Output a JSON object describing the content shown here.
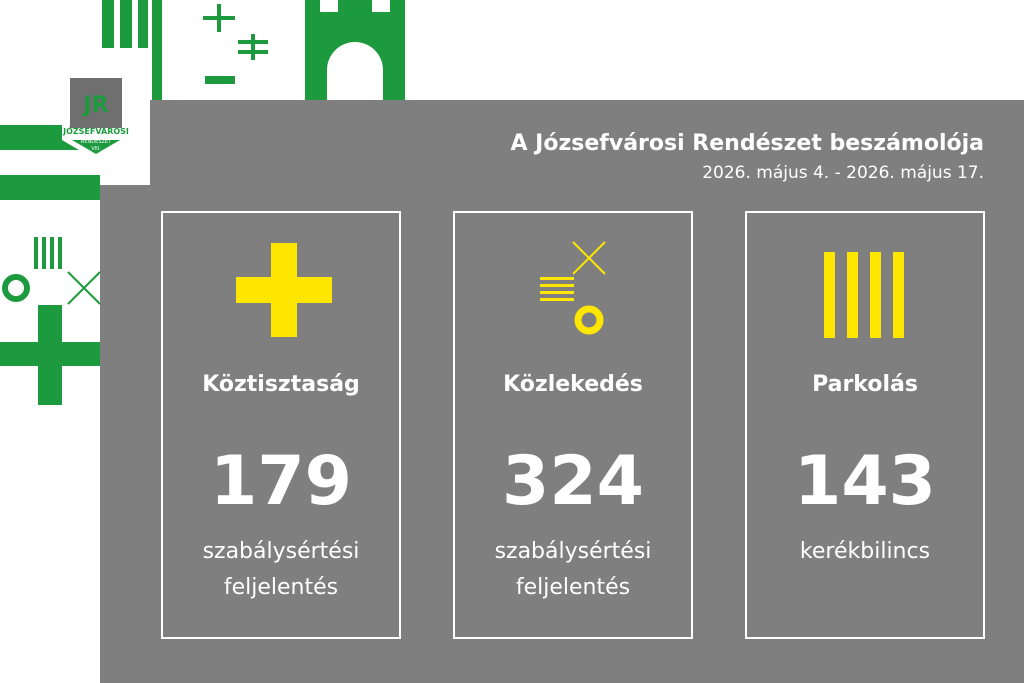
{
  "logo": {
    "mark": "JR",
    "name": "JÓZSEFVÁROSI",
    "unit": "RENDÉSZET",
    "district": "VIII."
  },
  "header": {
    "title": "A Józsefvárosi Rendészet beszámolója",
    "subtitle": "2026. május 4. - 2026. május 17."
  },
  "cards": [
    {
      "title": "Köztisztaság",
      "value": 179,
      "description": [
        "szabálysértési",
        "feljelentés"
      ]
    },
    {
      "title": "Közlekedés",
      "value": 324,
      "description": [
        "szabálysértési",
        "feljelentés"
      ]
    },
    {
      "title": "Parkolás",
      "value": 143,
      "description": [
        "kerékbilincs"
      ]
    }
  ]
}
